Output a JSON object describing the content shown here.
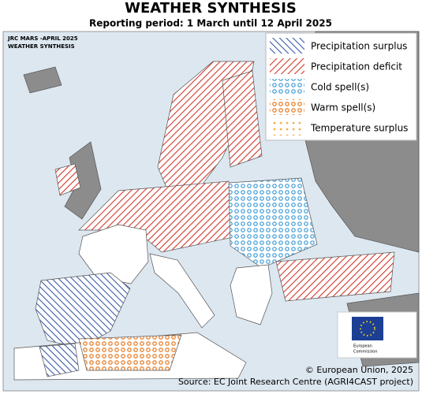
{
  "header": {
    "title": "WEATHER SYNTHESIS",
    "subtitle": "Reporting period: 1 March until 12 April 2025"
  },
  "map": {
    "corner_label": [
      "JRC MARS -APRIL 2025",
      "WEATHER SYNTHESIS"
    ],
    "legend": [
      "Precipitation surplus",
      "Precipitation deficit",
      "Cold spell(s)",
      "Warm spell(s)",
      "Temperature surplus"
    ],
    "logo": [
      "European",
      "Commission"
    ],
    "copyright": "© European Union, 2025",
    "source": "Source: EC Joint Research Centre (AGRI4CAST project)"
  }
}
